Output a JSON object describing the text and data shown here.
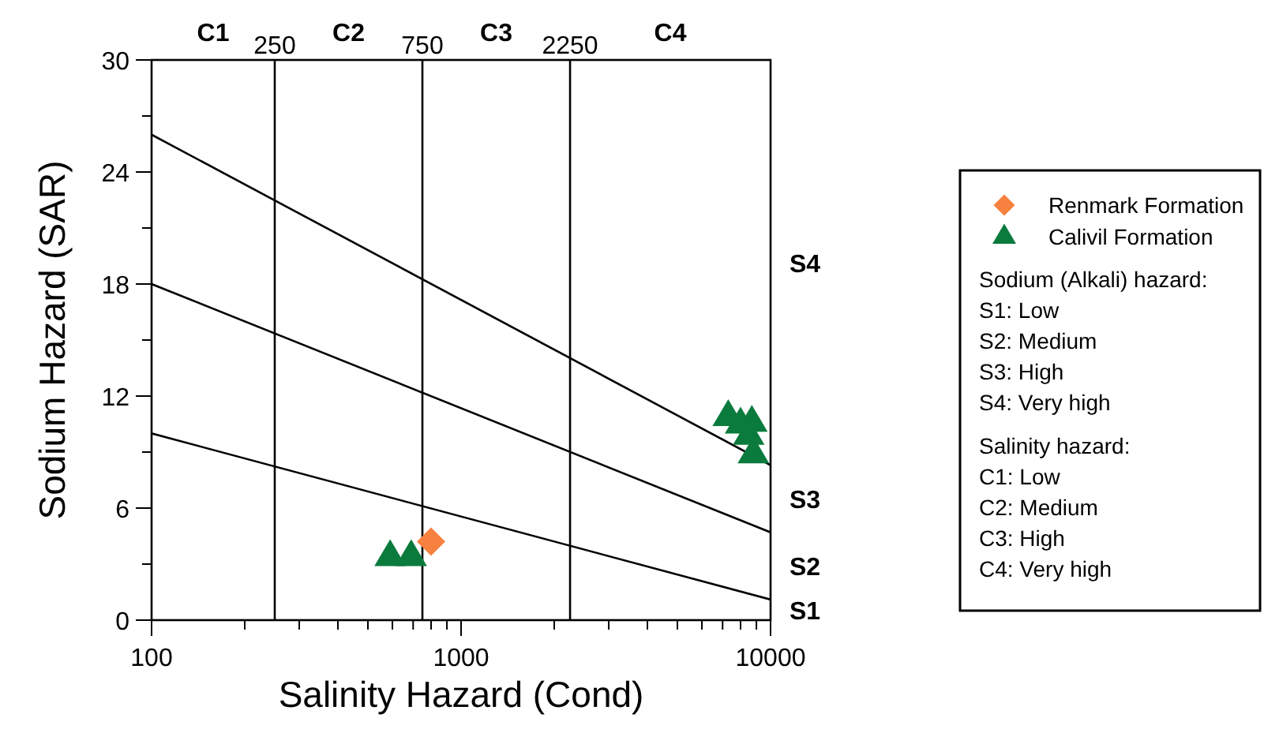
{
  "chart_data": {
    "type": "scatter",
    "xlabel": "Salinity Hazard (Cond)",
    "ylabel": "Sodium Hazard (SAR)",
    "log": "x",
    "xlim": [
      100,
      10000
    ],
    "ylim": [
      0,
      30
    ],
    "xticks": [
      100,
      {
        "value": 200,
        "label": null
      },
      {
        "value": 300,
        "label": null
      },
      {
        "value": 400,
        "label": null
      },
      {
        "value": 500,
        "label": null
      },
      {
        "value": 600,
        "label": null
      },
      {
        "value": 700,
        "label": null
      },
      {
        "value": 800,
        "label": null
      },
      {
        "value": 900,
        "label": null
      },
      1000,
      {
        "value": 2000,
        "label": null
      },
      {
        "value": 3000,
        "label": null
      },
      {
        "value": 4000,
        "label": null
      },
      {
        "value": 5000,
        "label": null
      },
      {
        "value": 6000,
        "label": null
      },
      {
        "value": 7000,
        "label": null
      },
      {
        "value": 8000,
        "label": null
      },
      {
        "value": 9000,
        "label": null
      },
      10000
    ],
    "yticks": [
      0,
      {
        "value": 3,
        "label": null
      },
      6,
      {
        "value": 9,
        "label": null
      },
      12,
      {
        "value": 15,
        "label": null
      },
      18,
      {
        "value": 21,
        "label": null
      },
      24,
      {
        "value": 27,
        "label": null
      },
      30
    ],
    "grid": false,
    "legend": "right",
    "series": [
      {
        "name": "Renmark Formation",
        "marker": "diamond",
        "color": "#f7813f",
        "x": [
          800
        ],
        "values": [
          4.2
        ]
      },
      {
        "name": "Calivil Formation",
        "marker": "triangle",
        "color": "#0b7a3d",
        "x": [
          590,
          690,
          7300,
          8000,
          8700,
          8500,
          8800
        ],
        "values": [
          3.4,
          3.4,
          10.9,
          10.5,
          10.6,
          9.9,
          8.9
        ]
      },
      {
        "type": "line",
        "marker": "none",
        "color": "#000000",
        "x": [
          100,
          10000
        ],
        "values": [
          10,
          1.1
        ]
      },
      {
        "type": "line",
        "marker": "none",
        "color": "#000000",
        "x": [
          100,
          10000
        ],
        "values": [
          18,
          4.7
        ]
      },
      {
        "type": "line",
        "marker": "none",
        "color": "#000000",
        "x": [
          100,
          10000
        ],
        "values": [
          26,
          8.3
        ]
      }
    ],
    "ref_lines": [
      {
        "axis": "x",
        "value": 250,
        "label": "250",
        "color": "#000000"
      },
      {
        "axis": "x",
        "value": 750,
        "label": "750",
        "color": "#000000"
      },
      {
        "axis": "x",
        "value": 2250,
        "label": "2250",
        "color": "#000000"
      }
    ],
    "annotations": [
      "C1",
      "C2",
      "C3",
      "C4",
      "S1",
      "S2",
      "S3",
      "S4",
      "Sodium (Alkali) hazard:",
      "S1: Low",
      "S2: Medium",
      "S3: High",
      "S4: Very high",
      "Salinity hazard:",
      "C1: Low",
      "C2: Medium",
      "C3: High",
      "C4: Very high"
    ]
  }
}
